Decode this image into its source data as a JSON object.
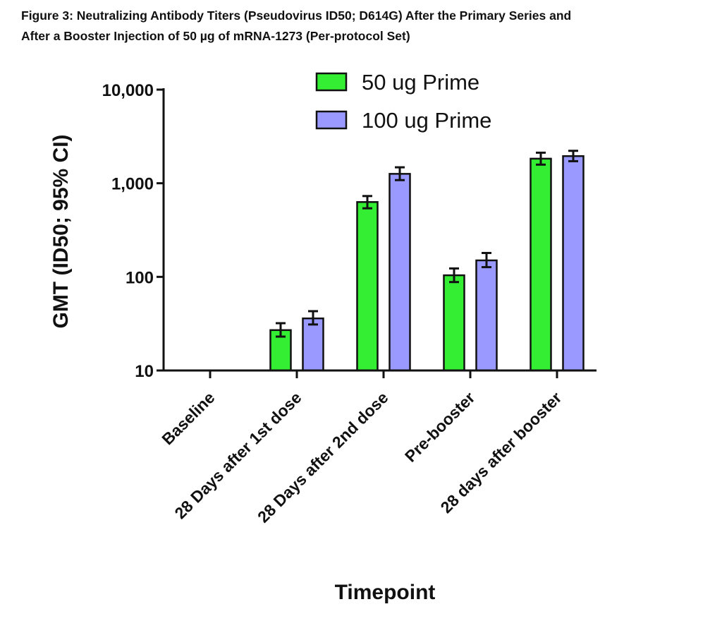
{
  "figure": {
    "caption_line1": "Figure 3:  Neutralizing Antibody Titers (Pseudovirus ID50; D614G) After the Primary Series and",
    "caption_line2": "After a Booster Injection of 50 µg of mRNA-1273 (Per-protocol Set)"
  },
  "chart_data": {
    "type": "bar",
    "title": "",
    "xlabel": "Timepoint",
    "ylabel": "GMT (ID50; 95% CI)",
    "y_scale": "log",
    "ylim": [
      10,
      10000
    ],
    "y_ticks": [
      10,
      100,
      1000,
      10000
    ],
    "y_tick_labels": [
      "10",
      "100",
      "1,000",
      "10,000"
    ],
    "categories": [
      "Baseline",
      "28 Days after 1st dose",
      "28 Days after 2nd dose",
      "Pre-booster",
      "28 days after booster"
    ],
    "series": [
      {
        "name": "50 ug Prime",
        "color": "#33ee33",
        "values": [
          null,
          27,
          630,
          104,
          1830
        ],
        "ci_low": [
          null,
          23,
          540,
          88,
          1580
        ],
        "ci_high": [
          null,
          32,
          730,
          123,
          2120
        ]
      },
      {
        "name": "100 ug Prime",
        "color": "#9999ff",
        "values": [
          null,
          36,
          1260,
          150,
          1950
        ],
        "ci_low": [
          null,
          31,
          1080,
          127,
          1720
        ],
        "ci_high": [
          null,
          43,
          1480,
          180,
          2220
        ]
      }
    ],
    "legend_position": "top",
    "grid": false
  }
}
